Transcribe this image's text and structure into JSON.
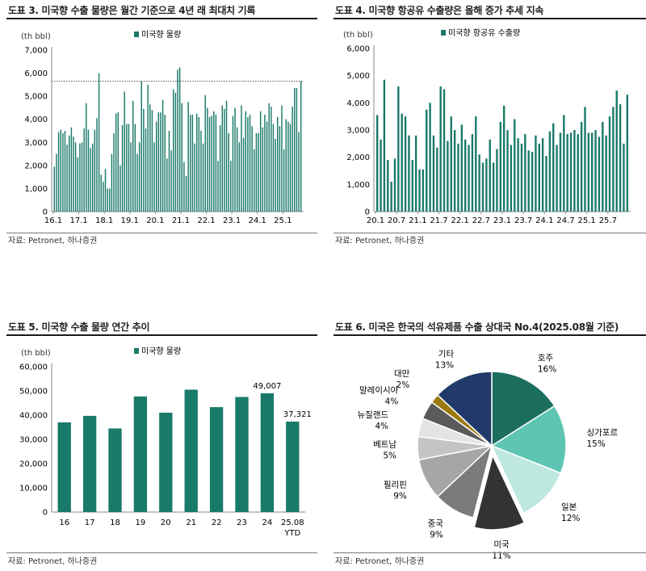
{
  "colors": {
    "bar": "#1a7a6a",
    "unit_text": "#333333"
  },
  "source_text": "자료: Petronet, 하나증권",
  "charts": [
    {
      "title": "도표 3. 미국향 수출 물량은 월간 기준으로 4년 래 최대치 기록",
      "unit": "(th bbl)",
      "legend": "미국향 물량",
      "type": "bar",
      "ylim": [
        0,
        7000
      ],
      "yticks": [
        "0",
        "1,000",
        "2,000",
        "3,000",
        "4,000",
        "5,000",
        "6,000",
        "7,000"
      ],
      "xticks": [
        "16.1",
        "17.1",
        "18.1",
        "19.1",
        "20.1",
        "21.1",
        "22.1",
        "23.1",
        "24.1",
        "25.1"
      ],
      "reference_line": 5650,
      "values": [
        1950,
        2500,
        3450,
        3550,
        3400,
        3500,
        2900,
        3300,
        3650,
        3250,
        3000,
        2350,
        2950,
        3000,
        3600,
        4700,
        3550,
        2750,
        2950,
        3550,
        4050,
        6000,
        1600,
        1300,
        1850,
        1000,
        1000,
        2500,
        3400,
        4250,
        4300,
        2000,
        3750,
        5200,
        3800,
        3800,
        3000,
        4800,
        3800,
        2500,
        3000,
        5650,
        4450,
        3600,
        5500,
        4650,
        4400,
        3000,
        3900,
        4300,
        4300,
        4850,
        4200,
        2300,
        3500,
        2650,
        5300,
        5150,
        6150,
        6250,
        4700,
        2150,
        1550,
        4750,
        4200,
        4200,
        2950,
        4250,
        4100,
        3500,
        2950,
        5050,
        4500,
        4100,
        4150,
        4350,
        4200,
        2200,
        3750,
        4600,
        4450,
        4800,
        3400,
        2200,
        4150,
        4500,
        3650,
        3000,
        4600,
        3200,
        4350,
        4100,
        4200,
        3700,
        2700,
        3400,
        3400,
        4350,
        3650,
        4200,
        3900,
        4700,
        4550,
        3800,
        3150,
        4100,
        3700,
        4600,
        2700,
        4000,
        3900,
        3800,
        4550,
        5350,
        5350,
        3450,
        5650
      ]
    },
    {
      "title": "도표 4. 미국향 항공유 수출량은 올해 증가 추세 지속",
      "unit": "(th bbl)",
      "legend": "미국향 항공유 수출량",
      "type": "bar",
      "ylim": [
        0,
        6000
      ],
      "yticks": [
        "0",
        "1,000",
        "2,000",
        "3,000",
        "4,000",
        "5,000",
        "6,000"
      ],
      "xticks": [
        "20.1",
        "20.7",
        "21.1",
        "21.7",
        "22.1",
        "22.7",
        "23.1",
        "23.7",
        "24.1",
        "24.7",
        "25.1",
        "25.7"
      ],
      "values": [
        3550,
        2650,
        4850,
        1900,
        1100,
        1950,
        4600,
        3600,
        3500,
        2800,
        1900,
        2800,
        1550,
        1550,
        3750,
        4000,
        2800,
        2350,
        4600,
        4500,
        2600,
        3500,
        3000,
        2500,
        3200,
        2650,
        2450,
        2850,
        3500,
        2100,
        1800,
        1950,
        2650,
        1800,
        2300,
        3300,
        3900,
        3000,
        2450,
        3400,
        2700,
        2500,
        2850,
        2250,
        2200,
        2800,
        2500,
        2700,
        2050,
        2950,
        3250,
        2450,
        2900,
        3550,
        2850,
        2900,
        3000,
        2850,
        3300,
        3850,
        2900,
        2900,
        3000,
        2750,
        3300,
        2800,
        3500,
        3850,
        4450,
        3950,
        2500,
        4300
      ]
    },
    {
      "title": "도표 5. 미국향 수출 물량 연간 추이",
      "unit": "(th bbl)",
      "legend": "미국향 물량",
      "type": "bar",
      "ylim": [
        0,
        60000
      ],
      "yticks": [
        "0",
        "10,000",
        "20,000",
        "30,000",
        "40,000",
        "50,000",
        "60,000"
      ],
      "categories": [
        "16",
        "17",
        "18",
        "19",
        "20",
        "21",
        "22",
        "23",
        "24",
        "25.08"
      ],
      "category_sub": {
        "9": "YTD"
      },
      "values": [
        37000,
        39700,
        34500,
        47700,
        41000,
        50500,
        43300,
        47500,
        49007,
        37321
      ],
      "data_labels": {
        "8": "49,007",
        "9": "37,321"
      }
    },
    {
      "title": "도표 6. 미국은 한국의 석유제품 수출 상대국 No.4(2025.08월 기준)",
      "type": "pie",
      "slices": [
        {
          "name": "호주",
          "pct": "16%",
          "value": 16,
          "color": "#1b6e5e",
          "explode": false
        },
        {
          "name": "싱가포르",
          "pct": "15%",
          "value": 15,
          "color": "#5ec5b3",
          "explode": false
        },
        {
          "name": "일본",
          "pct": "12%",
          "value": 12,
          "color": "#bde7df",
          "explode": false
        },
        {
          "name": "미국",
          "pct": "11%",
          "value": 11,
          "color": "#333333",
          "explode": true
        },
        {
          "name": "중국",
          "pct": "9%",
          "value": 9,
          "color": "#7b7b7b",
          "explode": false
        },
        {
          "name": "필리핀",
          "pct": "9%",
          "value": 9,
          "color": "#a6a6a6",
          "explode": false
        },
        {
          "name": "베트남",
          "pct": "5%",
          "value": 5,
          "color": "#c4c4c4",
          "explode": false
        },
        {
          "name": "뉴질랜드",
          "pct": "4%",
          "value": 4,
          "color": "#e4e4e4",
          "explode": false
        },
        {
          "name": "말레이시아",
          "pct": "4%",
          "value": 4,
          "color": "#5a5a5a",
          "explode": false
        },
        {
          "name": "대만",
          "pct": "2%",
          "value": 2,
          "color": "#9c7a10",
          "explode": false
        },
        {
          "name": "기타",
          "pct": "13%",
          "value": 13,
          "color": "#213a6b",
          "explode": false
        }
      ]
    }
  ]
}
